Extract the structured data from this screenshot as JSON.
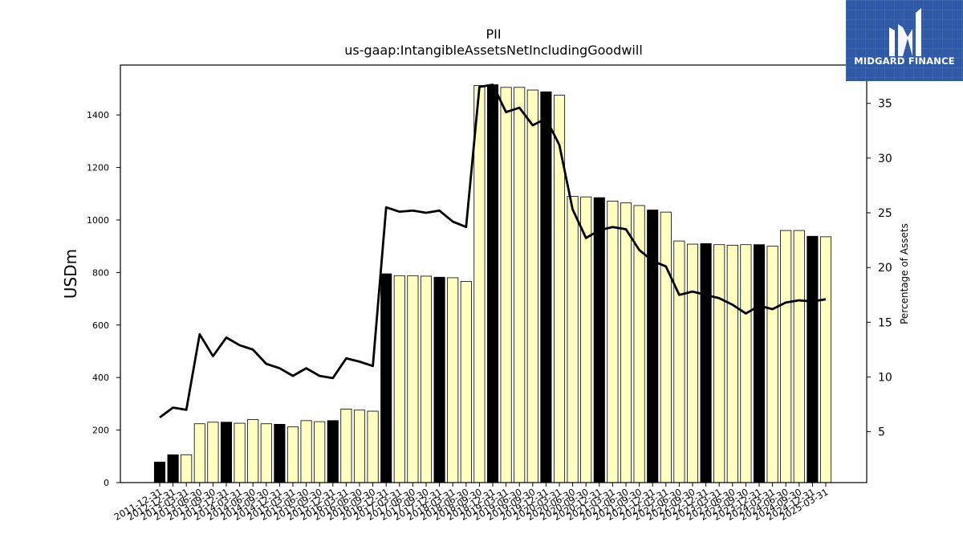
{
  "chart_data": {
    "type": "bar",
    "title": "PII",
    "subtitle": "us-gaap:IntangibleAssetsNetIncludingGoodwill",
    "ylabel": "USDm",
    "y2label": "Percentage of Assets",
    "ylim": [
      0,
      1590
    ],
    "y2lim": [
      0.35,
      38.5
    ],
    "yticks": [
      0,
      200,
      400,
      600,
      800,
      1000,
      1200,
      1400
    ],
    "y2ticks": [
      5,
      10,
      15,
      20,
      25,
      30,
      35
    ],
    "categories": [
      "2011-12-31",
      "2012-12-31",
      "2013-03-31",
      "2013-06-30",
      "2013-09-30",
      "2013-12-31",
      "2014-03-31",
      "2014-06-30",
      "2014-09-30",
      "2014-12-31",
      "2015-03-31",
      "2015-06-30",
      "2015-09-30",
      "2015-12-31",
      "2016-03-31",
      "2016-06-30",
      "2016-09-30",
      "2016-12-31",
      "2017-03-31",
      "2017-06-30",
      "2017-09-30",
      "2017-12-31",
      "2018-03-31",
      "2018-06-30",
      "2018-09-30",
      "2018-12-31",
      "2019-03-31",
      "2019-06-30",
      "2019-09-30",
      "2019-12-31",
      "2020-03-31",
      "2020-06-30",
      "2020-09-30",
      "2020-12-31",
      "2021-03-31",
      "2021-06-30",
      "2021-09-30",
      "2021-12-31",
      "2022-03-31",
      "2022-06-30",
      "2022-09-30",
      "2022-12-31",
      "2023-03-31",
      "2023-06-30",
      "2023-09-30",
      "2023-12-31",
      "2024-03-31",
      "2024-06-30",
      "2024-09-30",
      "2024-12-31",
      "2025-03-31"
    ],
    "series": [
      {
        "type": "bar",
        "values": [
          78,
          106,
          106,
          224,
          230,
          230,
          226,
          240,
          224,
          222,
          212,
          236,
          232,
          236,
          280,
          276,
          272,
          795,
          788,
          788,
          786,
          782,
          780,
          766,
          1512,
          1515,
          1505,
          1505,
          1495,
          1488,
          1475,
          1090,
          1088,
          1085,
          1072,
          1065,
          1055,
          1038,
          1030,
          920,
          908,
          910,
          906,
          904,
          906,
          906,
          900,
          960,
          960,
          938,
          936
        ],
        "highlight": [
          true,
          true,
          false,
          false,
          false,
          true,
          false,
          false,
          false,
          true,
          false,
          false,
          false,
          true,
          false,
          false,
          false,
          true,
          false,
          false,
          false,
          true,
          false,
          false,
          false,
          true,
          false,
          false,
          false,
          true,
          false,
          false,
          false,
          true,
          false,
          false,
          false,
          true,
          false,
          false,
          false,
          true,
          false,
          false,
          false,
          true,
          false,
          false,
          false,
          true,
          false
        ]
      },
      {
        "type": "line",
        "axis": "right",
        "values": [
          6.3,
          7.2,
          7.0,
          13.9,
          11.9,
          13.6,
          12.9,
          12.5,
          11.2,
          10.8,
          10.1,
          10.8,
          10.1,
          9.9,
          11.7,
          11.4,
          11.0,
          25.5,
          25.1,
          25.2,
          25.0,
          25.2,
          24.2,
          23.7,
          36.5,
          36.7,
          34.2,
          34.6,
          33.0,
          33.6,
          31.2,
          25.3,
          22.7,
          23.4,
          23.7,
          23.5,
          21.6,
          20.6,
          20.1,
          17.5,
          17.8,
          17.5,
          17.2,
          16.6,
          15.8,
          16.5,
          16.2,
          16.8,
          17.0,
          16.9,
          17.1
        ]
      }
    ],
    "colors": {
      "bar": "#ffffc0",
      "highlight_bar": "#000000",
      "line": "#000000"
    }
  },
  "logo": {
    "text": "MIDGARD FINANCE",
    "bg": "#2f5aa8"
  }
}
